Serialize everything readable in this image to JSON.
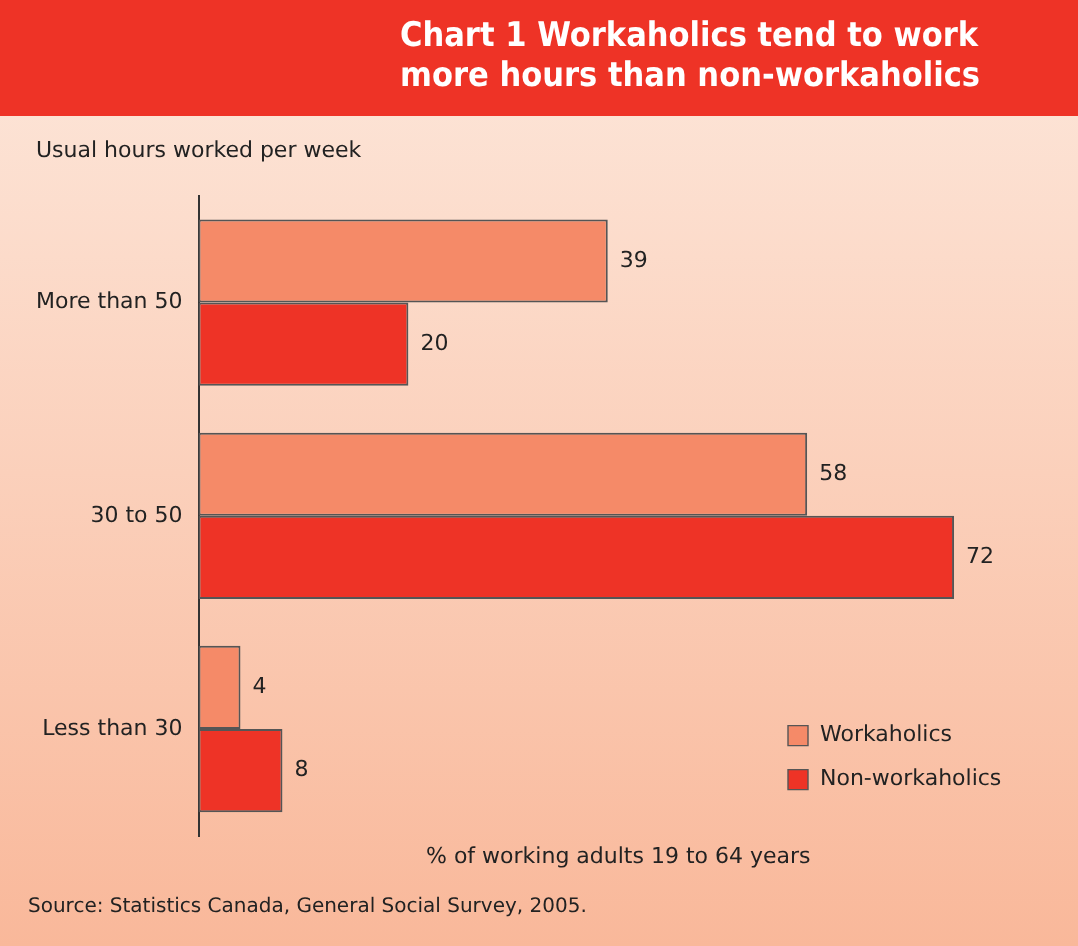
{
  "chart_data": {
    "type": "bar",
    "orientation": "horizontal",
    "title": "Chart 1  Workaholics tend to work more hours than non-workaholics",
    "ylabel": "Usual hours worked per week",
    "xlabel": "% of working adults 19 to 64 years",
    "categories": [
      "More than 50",
      "30 to 50",
      "Less than 30"
    ],
    "series": [
      {
        "name": "Workaholics",
        "color": "#f58a68",
        "values": [
          39,
          58,
          4
        ]
      },
      {
        "name": "Non-workaholics",
        "color": "#ee3326",
        "values": [
          20,
          72,
          8
        ]
      }
    ],
    "data_labels": true,
    "legend": "bottom right",
    "grid": false,
    "annotations": [
      "Source: Statistics Canada, General Social Survey, 2005."
    ]
  }
}
